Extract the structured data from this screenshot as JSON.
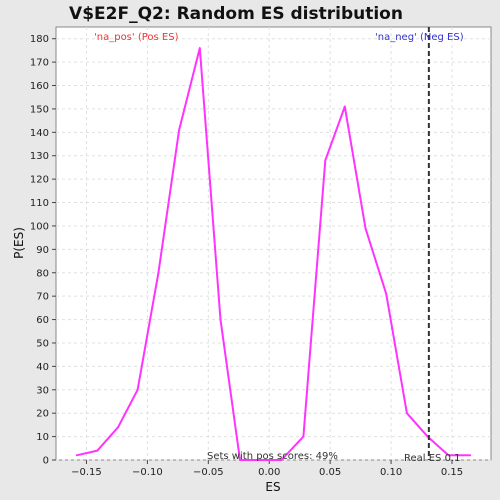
{
  "chart_data": {
    "type": "line",
    "title": "V$E2F_Q2: Random ES distribution",
    "xlabel": "ES",
    "ylabel": "P(ES)",
    "xlim": [
      -0.175,
      0.182
    ],
    "ylim": [
      0,
      185
    ],
    "x_ticks": [
      -0.15,
      -0.1,
      -0.05,
      0.0,
      0.05,
      0.1,
      0.15
    ],
    "x_tick_labels": [
      "−0.15",
      "−0.10",
      "−0.05",
      "0.00",
      "0.05",
      "0.10",
      "0.15"
    ],
    "y_ticks": [
      0,
      10,
      20,
      30,
      40,
      50,
      60,
      70,
      80,
      90,
      100,
      110,
      120,
      130,
      140,
      150,
      160,
      170,
      180
    ],
    "grid": true,
    "series": [
      {
        "color": "#ff33ff",
        "x": [
          -0.158,
          -0.141,
          -0.124,
          -0.108,
          -0.091,
          -0.074,
          -0.057,
          -0.04,
          -0.024,
          -0.007,
          0.01,
          0.028,
          0.046,
          0.062,
          0.079,
          0.096,
          0.113,
          0.13,
          0.147,
          0.165
        ],
        "y": [
          2,
          4,
          14,
          30,
          80,
          141,
          176,
          60,
          0,
          0,
          0,
          10,
          128,
          151,
          99,
          71,
          20,
          10,
          2,
          2
        ]
      }
    ],
    "real_es": 0.131,
    "real_es_color": "#333333",
    "annotations": {
      "pos_label": "'na_pos' (Pos ES)",
      "pos_color": "#ee3333",
      "neg_label": "'na_neg' (Neg ES)",
      "neg_color": "#3333cc",
      "sets_with_pos": "Sets with pos scores: 49%",
      "real_es_label": "Real ES 0.1"
    }
  }
}
